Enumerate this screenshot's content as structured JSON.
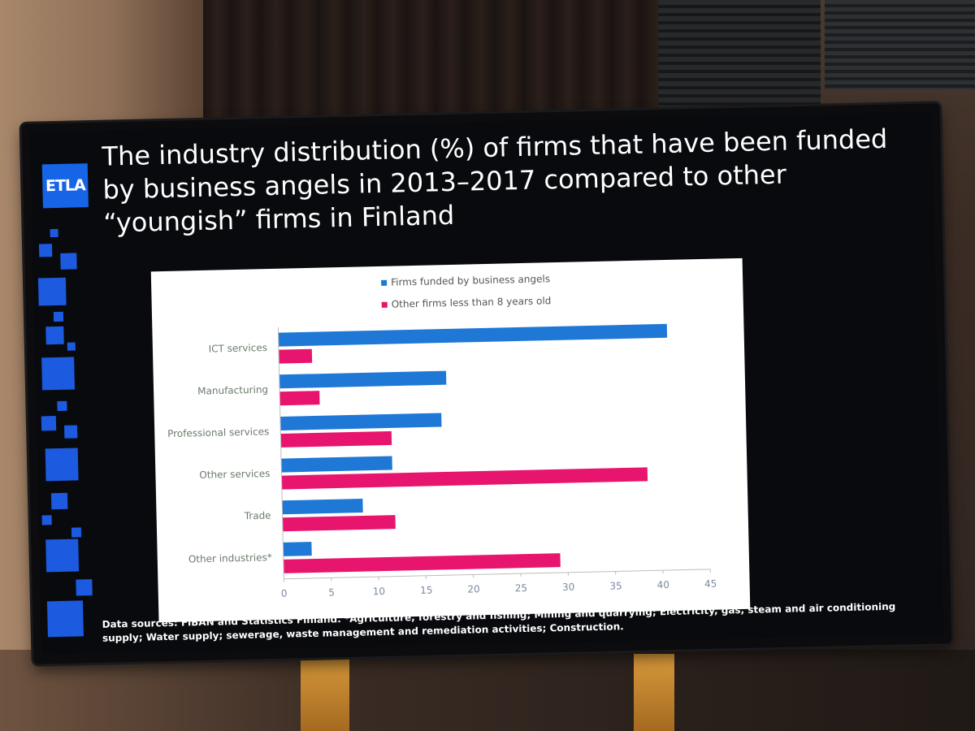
{
  "slide": {
    "logo_text": "ETLA",
    "title": "The industry distribution (%) of firms that have been funded\nby business angels in 2013–2017 compared to other\n“youngish” firms in Finland",
    "footnote": "Data sources: FiBAN and Statistics Finland. *Agriculture, forestry and fishing; Mining and quarrying; Electricity, gas, steam and air conditioning supply; Water supply; sewerage, waste management and remediation activities; Construction."
  },
  "colors": {
    "series_angels": "#1f78d6",
    "series_other": "#e8156e",
    "accent_blue": "#1565e6"
  },
  "chart_data": {
    "type": "bar",
    "orientation": "horizontal",
    "categories": [
      "ICT services",
      "Manufacturing",
      "Professional services",
      "Other services",
      "Trade",
      "Other industries*"
    ],
    "series": [
      {
        "name": "Firms funded by business angels",
        "values": [
          41,
          17.6,
          17,
          11.7,
          8.5,
          3
        ]
      },
      {
        "name": "Other firms less than 8 years old",
        "values": [
          3.5,
          4.2,
          11.7,
          38.6,
          11.9,
          29.2
        ]
      }
    ],
    "xlim": [
      0,
      45
    ],
    "xticks": [
      "0",
      "5",
      "10",
      "15",
      "20",
      "25",
      "30",
      "35",
      "40",
      "45"
    ],
    "legend_position": "top-center",
    "grid": false
  }
}
